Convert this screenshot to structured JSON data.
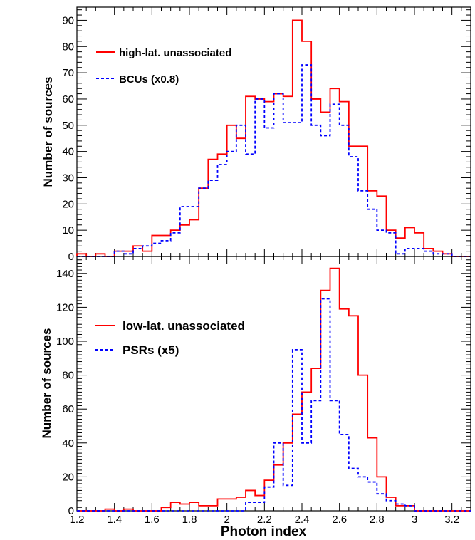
{
  "chart_data": [
    {
      "type": "histogram",
      "xlabel": "",
      "ylabel": "Number of sources",
      "xlim": [
        1.2,
        3.3
      ],
      "ylim": [
        0,
        95
      ],
      "y_ticks": [
        0,
        10,
        20,
        30,
        40,
        50,
        60,
        70,
        80,
        90
      ],
      "bin_edges": [
        1.2,
        1.25,
        1.3,
        1.35,
        1.4,
        1.45,
        1.5,
        1.55,
        1.6,
        1.65,
        1.7,
        1.75,
        1.8,
        1.85,
        1.9,
        1.95,
        2.0,
        2.05,
        2.1,
        2.15,
        2.2,
        2.25,
        2.3,
        2.35,
        2.4,
        2.45,
        2.5,
        2.55,
        2.6,
        2.65,
        2.7,
        2.75,
        2.8,
        2.85,
        2.9,
        2.95,
        3.0,
        3.05,
        3.1,
        3.15,
        3.2,
        3.25,
        3.3
      ],
      "series": [
        {
          "name": "high-lat. unassociated",
          "color": "#ff0000",
          "style": "solid",
          "values": [
            1,
            0,
            1,
            0,
            2,
            2,
            4,
            2,
            8,
            8,
            10,
            12,
            14,
            26,
            37,
            39,
            50,
            45,
            61,
            60,
            59,
            62,
            61,
            90,
            82,
            60,
            55,
            64,
            59,
            42,
            42,
            25,
            23,
            10,
            7,
            11,
            9,
            3,
            2,
            1,
            0,
            0
          ]
        },
        {
          "name": "BCUs (x0.8)",
          "color": "#0000ff",
          "style": "dashed",
          "values": [
            0,
            0,
            0,
            0,
            2,
            1,
            3,
            4,
            5,
            6,
            9,
            19,
            19,
            26,
            29,
            35,
            40,
            50,
            39,
            60,
            49,
            62,
            51,
            51,
            73,
            50,
            46,
            58,
            50,
            38,
            25,
            18,
            10,
            9,
            1,
            3,
            3,
            2,
            1,
            1,
            0,
            0
          ]
        }
      ]
    },
    {
      "type": "histogram",
      "xlabel": "Photon index",
      "ylabel": "Number of sources",
      "xlim": [
        1.2,
        3.3
      ],
      "ylim": [
        0,
        150
      ],
      "x_ticks": [
        "1.2",
        "1.4",
        "1.6",
        "1.8",
        "2",
        "2.2",
        "2.4",
        "2.6",
        "2.8",
        "3",
        "3.2"
      ],
      "y_ticks": [
        0,
        20,
        40,
        60,
        80,
        100,
        120,
        140
      ],
      "bin_edges": [
        1.2,
        1.25,
        1.3,
        1.35,
        1.4,
        1.45,
        1.5,
        1.55,
        1.6,
        1.65,
        1.7,
        1.75,
        1.8,
        1.85,
        1.9,
        1.95,
        2.0,
        2.05,
        2.1,
        2.15,
        2.2,
        2.25,
        2.3,
        2.35,
        2.4,
        2.45,
        2.5,
        2.55,
        2.6,
        2.65,
        2.7,
        2.75,
        2.8,
        2.85,
        2.9,
        2.95,
        3.0,
        3.05,
        3.1,
        3.15,
        3.2,
        3.25,
        3.3
      ],
      "series": [
        {
          "name": "low-lat. unassociated",
          "color": "#ff0000",
          "style": "solid",
          "values": [
            0,
            0,
            0,
            1,
            0,
            1,
            0,
            0,
            0,
            2,
            5,
            4,
            5,
            3,
            3,
            7,
            7,
            8,
            12,
            9,
            18,
            27,
            40,
            57,
            70,
            84,
            130,
            143,
            119,
            115,
            80,
            43,
            20,
            8,
            3,
            3,
            0,
            0,
            0,
            0,
            0,
            0
          ]
        },
        {
          "name": "PSRs (x5)",
          "color": "#0000ff",
          "style": "dashed",
          "values": [
            0,
            0,
            0,
            0,
            0,
            0,
            0,
            0,
            0,
            0,
            0,
            0,
            0,
            0,
            0,
            0,
            0,
            0,
            5,
            5,
            14,
            40,
            15,
            95,
            40,
            65,
            125,
            65,
            45,
            25,
            20,
            17,
            10,
            6,
            4,
            3,
            0,
            0,
            0,
            0,
            0,
            0
          ]
        }
      ]
    }
  ]
}
